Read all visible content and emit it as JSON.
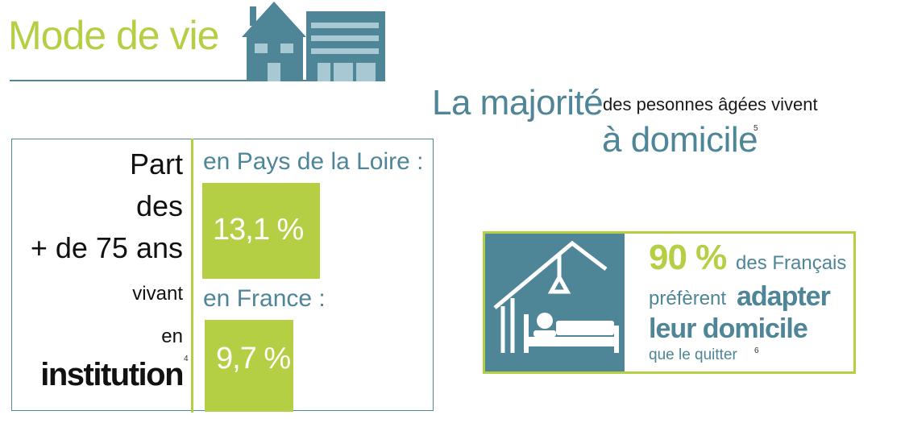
{
  "header": {
    "title": "Mode de vie"
  },
  "headline": {
    "big": "La majorité",
    "small": "des pesonnes âgées vivent",
    "domicile": "à domicile",
    "footnote": "5"
  },
  "panel": {
    "label_lines": [
      "Part",
      "des",
      "+ de 75 ans",
      "vivant",
      "en",
      "institution"
    ],
    "footnote": "4",
    "pays_de_la_loire": {
      "label": "en Pays de la Loire :",
      "value": "13,1 %"
    },
    "france": {
      "label": "en France :",
      "value": "9,7 %"
    }
  },
  "card": {
    "percent": "90 %",
    "line1_rest": "des Français",
    "line2_start": "préfèrent",
    "line2_bold": "adapter",
    "line3_bold": "leur domicile",
    "line4": "que le quitter",
    "footnote": "6",
    "icon": "bed-with-patient-lift-icon"
  },
  "colors": {
    "green": "#b5cf45",
    "teal": "#4e8597",
    "light_teal": "#a8c9d3",
    "text": "#111111"
  }
}
